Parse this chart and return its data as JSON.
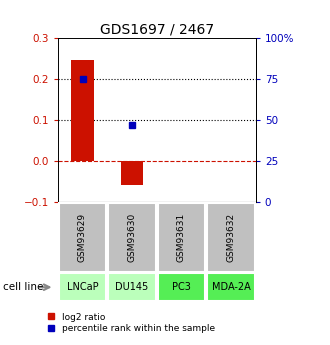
{
  "title": "GDS1697 / 2467",
  "samples": [
    "GSM93629",
    "GSM93630",
    "GSM93631",
    "GSM93632"
  ],
  "cell_lines": [
    "LNCaP",
    "DU145",
    "PC3",
    "MDA-2A"
  ],
  "cell_line_colors": [
    "#bbffbb",
    "#bbffbb",
    "#55ee55",
    "#55ee55"
  ],
  "log2_ratios": [
    0.245,
    -0.06,
    null,
    null
  ],
  "percentile_ranks_pct": [
    75,
    47,
    null,
    null
  ],
  "ylim_left": [
    -0.1,
    0.3
  ],
  "ylim_right": [
    0,
    100
  ],
  "left_yticks": [
    -0.1,
    0.0,
    0.1,
    0.2,
    0.3
  ],
  "right_yticks": [
    0,
    25,
    50,
    75,
    100
  ],
  "right_yticklabels": [
    "0",
    "25",
    "50",
    "75",
    "100%"
  ],
  "bar_color": "#cc1100",
  "dot_color": "#0000bb",
  "gsm_box_color": "#c0c0c0"
}
